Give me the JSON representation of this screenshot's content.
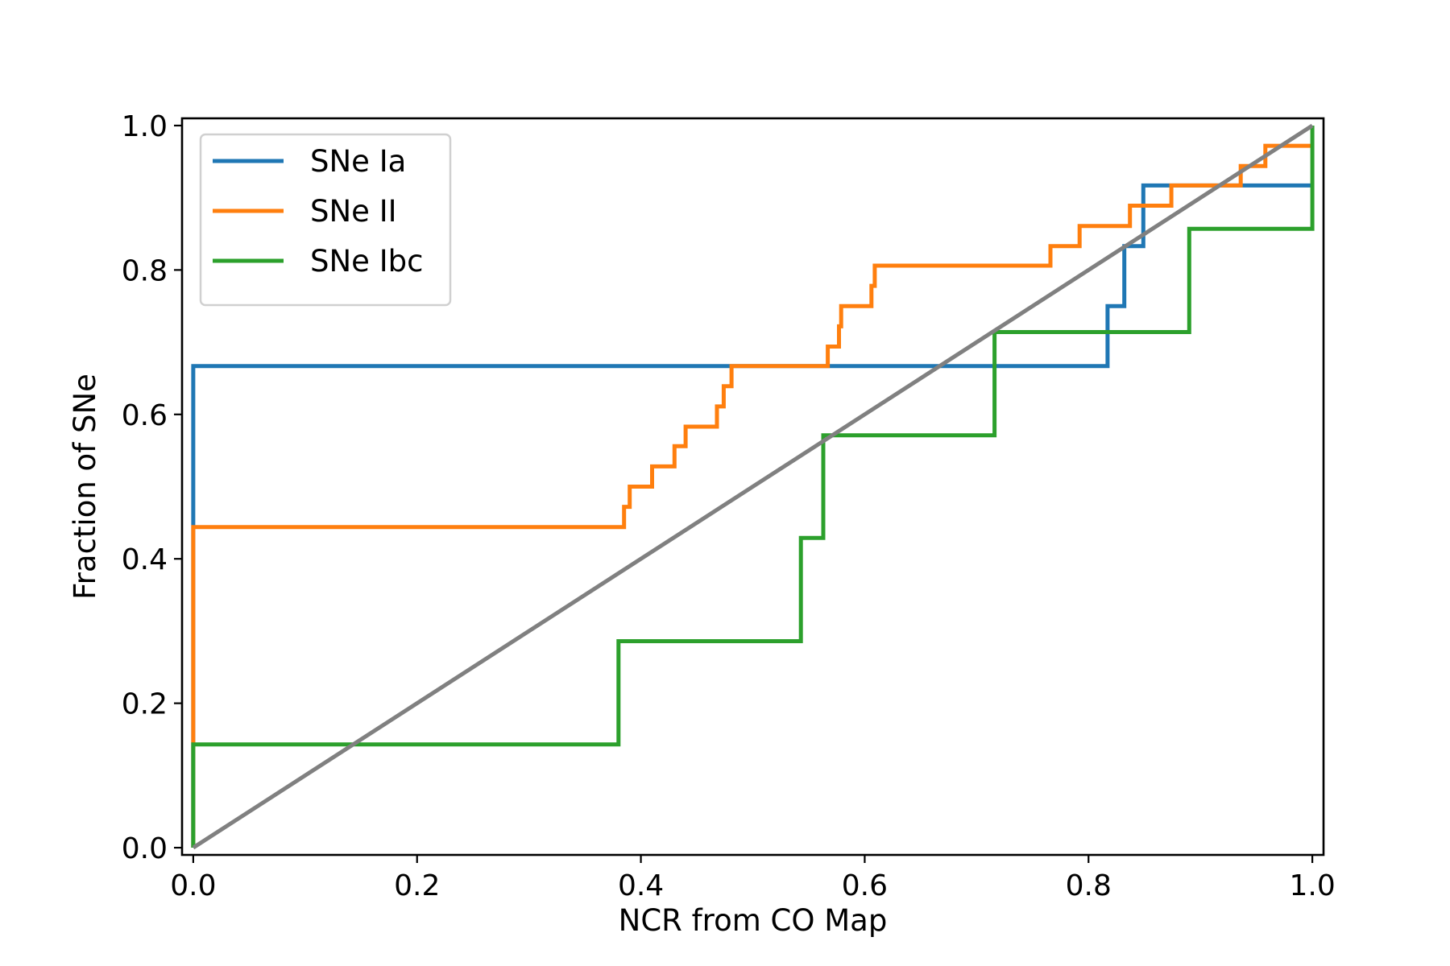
{
  "chart_data": {
    "type": "line",
    "step": true,
    "title": "",
    "xlabel": "NCR from CO Map",
    "ylabel": "Fraction of SNe",
    "xlim": [
      -0.01,
      1.01
    ],
    "ylim": [
      -0.01,
      1.01
    ],
    "xticks": [
      0.0,
      0.2,
      0.4,
      0.6,
      0.8,
      1.0
    ],
    "yticks": [
      0.0,
      0.2,
      0.4,
      0.6,
      0.8,
      1.0
    ],
    "xtick_labels": [
      "0.0",
      "0.2",
      "0.4",
      "0.6",
      "0.8",
      "1.0"
    ],
    "ytick_labels": [
      "0.0",
      "0.2",
      "0.4",
      "0.6",
      "0.8",
      "1.0"
    ],
    "grid": false,
    "legend_position": "upper-left",
    "series": [
      {
        "name": "SNe Ia",
        "color": "#1f77b4",
        "x": [
          0.0,
          0.0,
          0.817,
          0.817,
          0.832,
          0.832,
          0.849,
          0.849,
          1.0
        ],
        "y": [
          0.0,
          0.667,
          0.667,
          0.75,
          0.75,
          0.833,
          0.833,
          0.917,
          0.917
        ]
      },
      {
        "name": "SNe II",
        "color": "#ff7f0e",
        "x": [
          0.0,
          0.0,
          0.385,
          0.385,
          0.39,
          0.39,
          0.41,
          0.41,
          0.43,
          0.43,
          0.44,
          0.44,
          0.468,
          0.468,
          0.474,
          0.474,
          0.481,
          0.481,
          0.567,
          0.567,
          0.577,
          0.577,
          0.579,
          0.579,
          0.606,
          0.606,
          0.609,
          0.609,
          0.766,
          0.766,
          0.792,
          0.792,
          0.837,
          0.837,
          0.874,
          0.874,
          0.936,
          0.936,
          0.958,
          0.958,
          1.0
        ],
        "y": [
          0.0,
          0.444,
          0.444,
          0.472,
          0.472,
          0.5,
          0.5,
          0.528,
          0.528,
          0.556,
          0.556,
          0.583,
          0.583,
          0.611,
          0.611,
          0.639,
          0.639,
          0.667,
          0.667,
          0.694,
          0.694,
          0.722,
          0.722,
          0.75,
          0.75,
          0.778,
          0.778,
          0.806,
          0.806,
          0.833,
          0.833,
          0.861,
          0.861,
          0.889,
          0.889,
          0.917,
          0.917,
          0.944,
          0.944,
          0.972,
          0.972
        ]
      },
      {
        "name": "SNe Ibc",
        "color": "#2ca02c",
        "x": [
          0.0,
          0.0,
          0.38,
          0.38,
          0.543,
          0.543,
          0.563,
          0.563,
          0.716,
          0.716,
          0.89,
          0.89,
          1.0,
          1.0
        ],
        "y": [
          0.0,
          0.143,
          0.143,
          0.286,
          0.286,
          0.429,
          0.429,
          0.571,
          0.571,
          0.714,
          0.714,
          0.857,
          0.857,
          1.0
        ]
      },
      {
        "name": "",
        "color": "#808080",
        "x": [
          0.0,
          1.0
        ],
        "y": [
          0.0,
          1.0
        ]
      }
    ]
  }
}
